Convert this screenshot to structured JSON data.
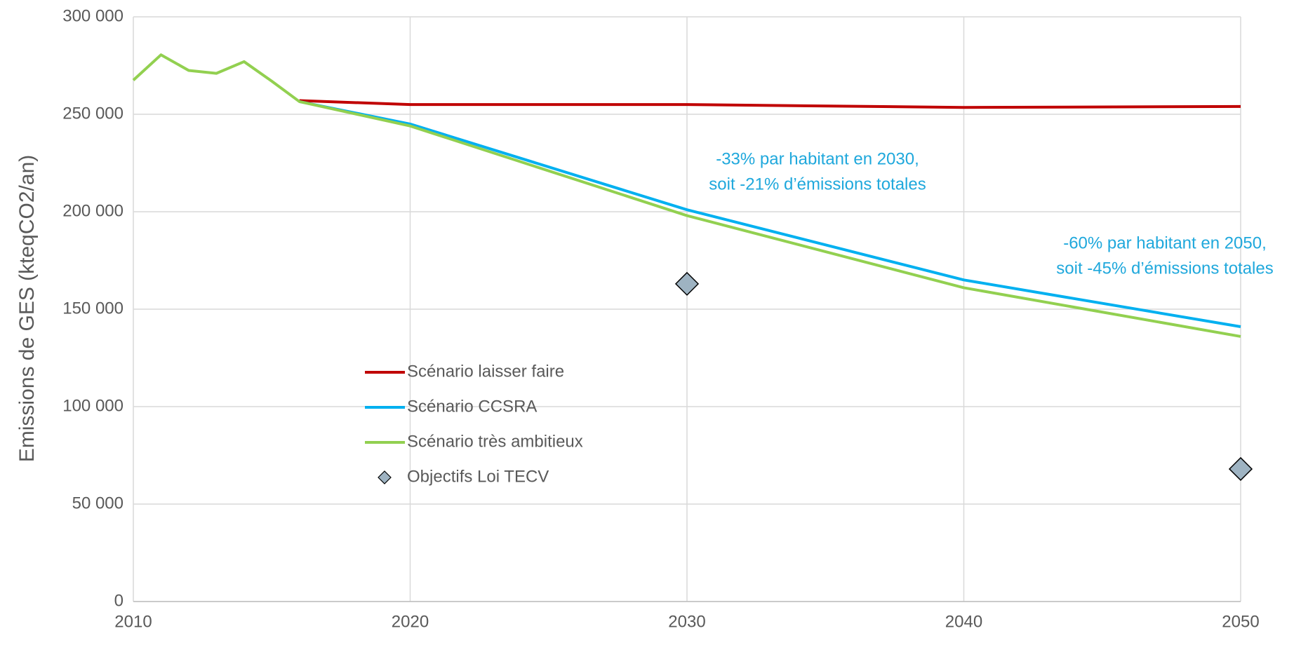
{
  "chart_data": {
    "type": "line",
    "y_label": "Emissions de GES (kteqCO2/an)",
    "x": [
      2010,
      2011,
      2012,
      2013,
      2014,
      2015,
      2016,
      2020,
      2030,
      2040,
      2050
    ],
    "series": [
      {
        "name": "Scénario laisser faire",
        "color": "#c00000",
        "values": [
          null,
          null,
          null,
          null,
          null,
          null,
          257000,
          255000,
          255000,
          253500,
          254000
        ]
      },
      {
        "name": "Scénario CCSRA",
        "color": "#00b0f0",
        "values": [
          null,
          null,
          null,
          null,
          null,
          null,
          256500,
          245000,
          201000,
          165000,
          141000
        ]
      },
      {
        "name": "Scénario très ambitieux",
        "color": "#92d050",
        "values": [
          267500,
          280500,
          272500,
          271000,
          277000,
          267000,
          256500,
          244000,
          198000,
          161000,
          136000
        ]
      },
      {
        "name": "Objectifs Loi TECV",
        "color": "#9eb3c2",
        "marker": "diamond",
        "values": [
          null,
          null,
          null,
          null,
          null,
          null,
          null,
          null,
          163000,
          null,
          68000
        ]
      }
    ],
    "annotations": [
      [
        "-33% par habitant en 2030,",
        "soit -21% d’émissions totales"
      ],
      [
        "-60% par habitant en 2050,",
        "soit -45% d’émissions totales"
      ]
    ],
    "annotation_color": "#1fa8dc",
    "xlim": [
      2010,
      2050
    ],
    "xticks": [
      2010,
      2020,
      2030,
      2040,
      2050
    ],
    "ylim": [
      0,
      300000
    ],
    "yticks": [
      0,
      {
        "value": 50000,
        "label": "50 000"
      },
      {
        "value": 100000,
        "label": "100 000"
      },
      {
        "value": 150000,
        "label": "150 000"
      },
      {
        "value": 200000,
        "label": "200 000"
      },
      {
        "value": 250000,
        "label": "250 000"
      },
      {
        "value": 300000,
        "label": "300 000"
      }
    ],
    "grid": true
  }
}
